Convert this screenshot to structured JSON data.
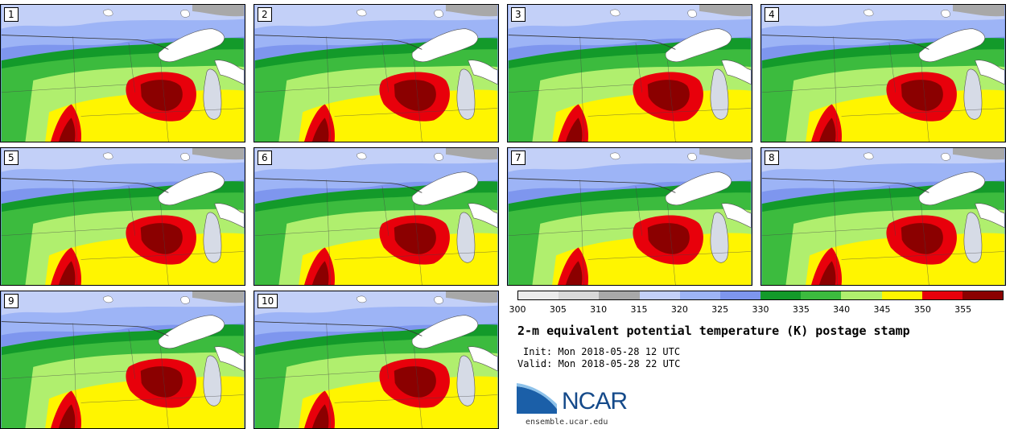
{
  "panels": [
    {
      "label": "1"
    },
    {
      "label": "2"
    },
    {
      "label": "3"
    },
    {
      "label": "4"
    },
    {
      "label": "5"
    },
    {
      "label": "6"
    },
    {
      "label": "7"
    },
    {
      "label": "8"
    },
    {
      "label": "9"
    },
    {
      "label": "10"
    }
  ],
  "colorbar": {
    "ticks": [
      "300",
      "305",
      "310",
      "315",
      "320",
      "325",
      "330",
      "335",
      "340",
      "345",
      "350",
      "355"
    ],
    "colors": [
      "#ececec",
      "#d8d8d8",
      "#a8a8a8",
      "#c3d0f8",
      "#9db4f6",
      "#7e96ee",
      "#139a2a",
      "#3cbb3e",
      "#b0ef6e",
      "#fff500",
      "#e8000b",
      "#8b0000"
    ]
  },
  "title": "2-m equivalent potential temperature (K) postage stamp",
  "init": "Init: Mon 2018-05-28 12 UTC",
  "valid": "Valid: Mon 2018-05-28 22 UTC",
  "logo": {
    "text": "NCAR",
    "icon": "ncar-logo-icon"
  },
  "site": "ensemble.ucar.edu"
}
